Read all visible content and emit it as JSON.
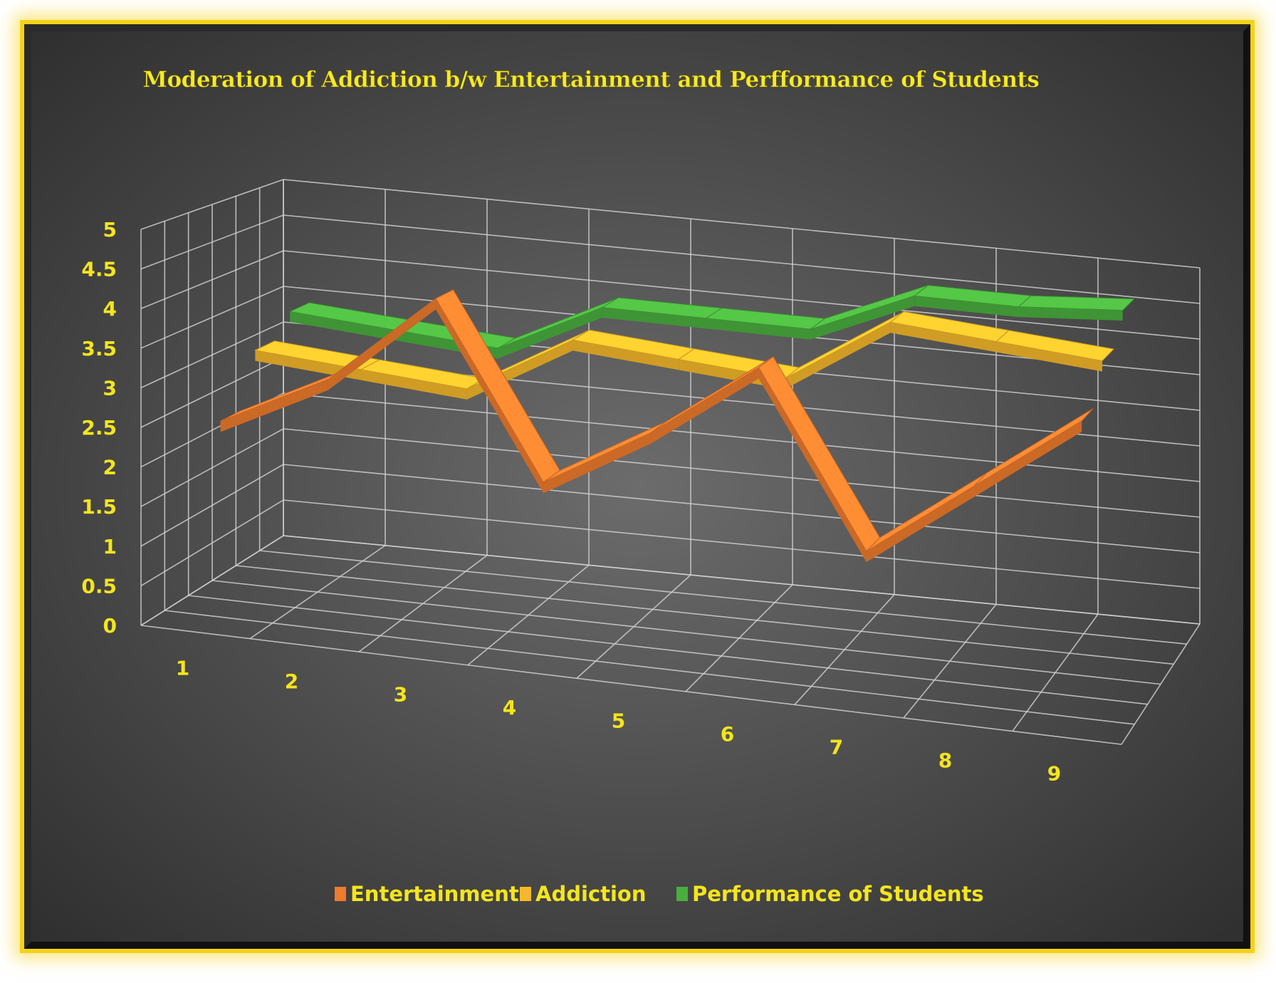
{
  "chart_data": {
    "type": "line",
    "title": "Moderation of Addiction b/w Entertainment and Perfformance of Students",
    "categories": [
      "1",
      "2",
      "3",
      "4",
      "5",
      "6",
      "7",
      "8",
      "9"
    ],
    "y_ticks": [
      "0",
      "0.5",
      "1",
      "1.5",
      "2",
      "2.5",
      "3",
      "3.5",
      "4",
      "4.5",
      "5"
    ],
    "ylim": [
      0,
      5
    ],
    "grid": true,
    "legend_position": "bottom",
    "series": [
      {
        "name": "Entertainment",
        "values": [
          2.5,
          3.2,
          4.4,
          2.2,
          3.0,
          4.0,
          1.8,
          2.8,
          3.8
        ],
        "color": "#ef7b2d"
      },
      {
        "name": "Addiction",
        "values": [
          3.2,
          3.1,
          3.0,
          3.8,
          3.7,
          3.6,
          4.5,
          4.4,
          4.3
        ],
        "color": "#f5b82a"
      },
      {
        "name": "Performance of Students",
        "values": [
          3.5,
          3.4,
          3.3,
          4.0,
          4.0,
          4.0,
          4.6,
          4.6,
          4.7
        ],
        "color": "#4aae3e"
      }
    ]
  }
}
